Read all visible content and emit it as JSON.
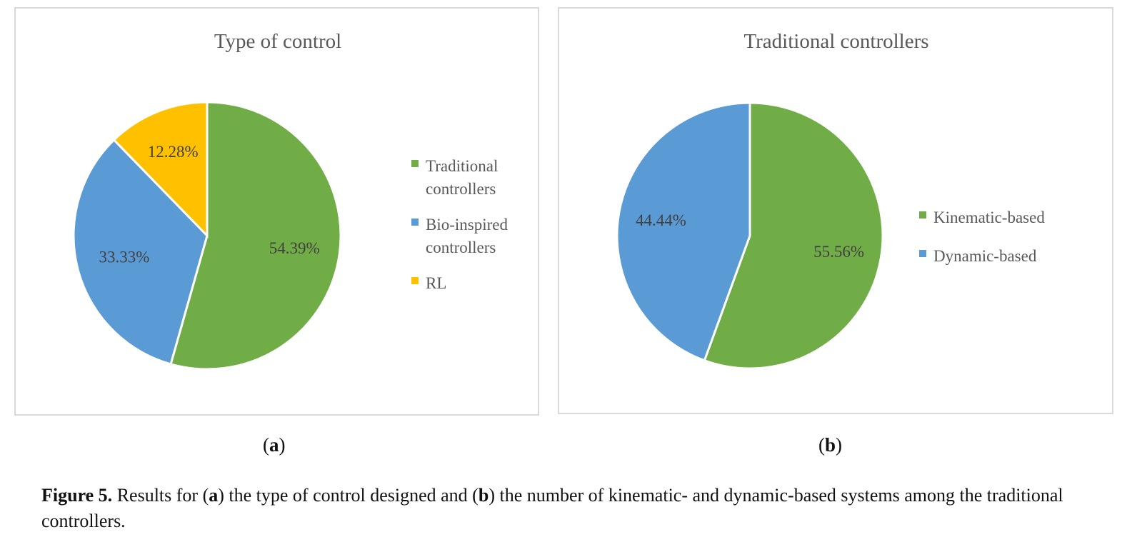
{
  "chart_data": [
    {
      "type": "pie",
      "title": "Type of control",
      "categories": [
        "Traditional controllers",
        "Bio-inspired controllers",
        "RL"
      ],
      "values": [
        54.39,
        33.33,
        12.28
      ],
      "value_labels": [
        "54.39%",
        "33.33%",
        "12.28%"
      ],
      "legend_lines": [
        [
          "Traditional",
          "controllers"
        ],
        [
          "Bio-inspired",
          "controllers"
        ],
        [
          "RL"
        ]
      ],
      "colors": [
        "#70ad47",
        "#5b9bd5",
        "#ffc000"
      ],
      "legend_position": "right"
    },
    {
      "type": "pie",
      "title": "Traditional controllers",
      "categories": [
        "Kinematic-based",
        "Dynamic-based"
      ],
      "values": [
        55.56,
        44.44
      ],
      "value_labels": [
        "55.56%",
        "44.44%"
      ],
      "legend_lines": [
        [
          "Kinematic-based"
        ],
        [
          "Dynamic-based"
        ]
      ],
      "colors": [
        "#70ad47",
        "#5b9bd5"
      ],
      "legend_position": "right"
    }
  ],
  "subfigures": {
    "a": {
      "open": "(",
      "letter": "a",
      "close": ")"
    },
    "b": {
      "open": "(",
      "letter": "b",
      "close": ")"
    }
  },
  "caption": {
    "label": "Figure 5.",
    "part1": " Results for (",
    "letter_a": "a",
    "part2": ") the type of control designed and (",
    "letter_b": "b",
    "part3": ") the number of kinematic- and dynamic-based systems among the traditional controllers."
  }
}
